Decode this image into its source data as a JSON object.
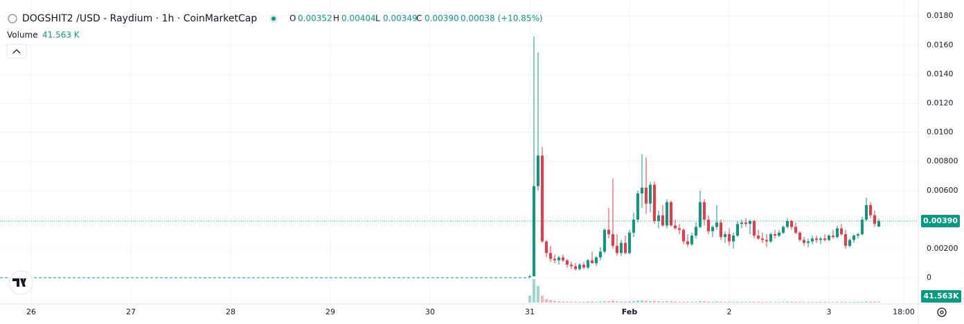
{
  "chart_data": {
    "type": "candlestick",
    "title": "DOGSHIT2 /USD - Raydium · 1h · CoinMarketCap",
    "ohlc_header": [
      {
        "key": "O",
        "text": "0.00352"
      },
      {
        "key": "H",
        "text": "0.00404"
      },
      {
        "key": "L",
        "text": "0.00349"
      },
      {
        "key": "C",
        "text": "0.00390"
      }
    ],
    "change": "0.00038 (+10.85%)",
    "volume_title": "Volume",
    "volume_text": "41.563 K",
    "volume_axis_label": "41.563K",
    "last_price_label": "0.00390",
    "up_color": "#089981",
    "down_color": "#f23645",
    "volume_up_color": "#9fd6cf",
    "volume_down_color": "#f7b3b8",
    "grid": true,
    "xlim": [
      -127.5,
      93.5
    ],
    "xticks": [
      {
        "value": -120,
        "label": "26"
      },
      {
        "value": -96,
        "label": "27"
      },
      {
        "value": -72,
        "label": "28"
      },
      {
        "value": -48,
        "label": "29"
      },
      {
        "value": -24,
        "label": "30"
      },
      {
        "value": 0,
        "label": "31"
      },
      {
        "value": 24,
        "label": "Feb"
      },
      {
        "value": 48,
        "label": "2"
      },
      {
        "value": 72,
        "label": "3"
      },
      {
        "value": 90,
        "label": "18:00"
      }
    ],
    "ylim": [
      -0.0018,
      0.0191
    ],
    "yticks": [
      0,
      {
        "value": 0.002,
        "label": "0.00200"
      },
      {
        "value": 0.006,
        "label": "0.00600"
      },
      {
        "value": 0.008,
        "label": "0.00800"
      },
      {
        "value": 0.01,
        "label": "0.0100"
      },
      {
        "value": 0.012,
        "label": "0.0120"
      },
      {
        "value": 0.014,
        "label": "0.0140"
      },
      {
        "value": 0.016,
        "label": "0.0160"
      },
      {
        "value": 0.018,
        "label": "0.0180"
      }
    ],
    "volume_ylim": [
      0,
      1200000
    ],
    "x": [
      0,
      1,
      2,
      3,
      4,
      5,
      6,
      7,
      8,
      9,
      10,
      11,
      12,
      13,
      14,
      15,
      16,
      17,
      18,
      19,
      20,
      21,
      22,
      23,
      24,
      25,
      26,
      27,
      28,
      29,
      30,
      31,
      32,
      33,
      34,
      35,
      36,
      37,
      38,
      39,
      40,
      41,
      42,
      43,
      44,
      45,
      46,
      47,
      48,
      49,
      50,
      51,
      52,
      53,
      54,
      55,
      56,
      57,
      58,
      59,
      60,
      61,
      62,
      63,
      64,
      65,
      66,
      67,
      68,
      69,
      70,
      71,
      72,
      73,
      74,
      75,
      76,
      77,
      78,
      79,
      80,
      81,
      82,
      83,
      84
    ],
    "open": [
      0.0001,
      0.0001,
      0.0063,
      0.0084,
      0.0025,
      0.0017,
      0.0013,
      0.0012,
      0.0014,
      0.0012,
      0.0009,
      0.0008,
      0.0006,
      0.0009,
      0.0007,
      0.0012,
      0.001,
      0.0014,
      0.0018,
      0.0033,
      0.003,
      0.0022,
      0.0017,
      0.0024,
      0.0017,
      0.0031,
      0.004,
      0.0058,
      0.0062,
      0.0051,
      0.0064,
      0.0039,
      0.0043,
      0.0036,
      0.0052,
      0.0036,
      0.0034,
      0.0033,
      0.0025,
      0.0023,
      0.0029,
      0.0035,
      0.0052,
      0.004,
      0.0032,
      0.0035,
      0.0038,
      0.0028,
      0.003,
      0.0025,
      0.0029,
      0.0037,
      0.0038,
      0.0037,
      0.0039,
      0.0029,
      0.0027,
      0.0026,
      0.0025,
      0.003,
      0.0029,
      0.0031,
      0.0035,
      0.0039,
      0.0035,
      0.0031,
      0.0026,
      0.0024,
      0.0025,
      0.0027,
      0.0026,
      0.0027,
      0.0026,
      0.0029,
      0.0028,
      0.0034,
      0.003,
      0.0022,
      0.0026,
      0.0029,
      0.003,
      0.004,
      0.005,
      0.0043,
      0.00352
    ],
    "high": [
      0.0002,
      0.0166,
      0.0155,
      0.009,
      0.0026,
      0.0022,
      0.0016,
      0.0015,
      0.0016,
      0.0013,
      0.0011,
      0.001,
      0.001,
      0.0011,
      0.0013,
      0.0018,
      0.0015,
      0.0021,
      0.0034,
      0.0048,
      0.0068,
      0.003,
      0.0026,
      0.0029,
      0.0033,
      0.0045,
      0.006,
      0.0085,
      0.0083,
      0.0066,
      0.0066,
      0.0046,
      0.005,
      0.0054,
      0.0053,
      0.004,
      0.0037,
      0.0034,
      0.003,
      0.0031,
      0.0038,
      0.006,
      0.0054,
      0.0043,
      0.0036,
      0.005,
      0.004,
      0.0032,
      0.0034,
      0.0031,
      0.0039,
      0.004,
      0.0041,
      0.004,
      0.004,
      0.0033,
      0.0031,
      0.003,
      0.0031,
      0.0033,
      0.0033,
      0.0036,
      0.0041,
      0.004,
      0.0038,
      0.0032,
      0.0028,
      0.0027,
      0.0029,
      0.0029,
      0.0028,
      0.003,
      0.003,
      0.0033,
      0.0036,
      0.0037,
      0.0033,
      0.0027,
      0.003,
      0.0031,
      0.0042,
      0.0055,
      0.0052,
      0.0046,
      0.00404
    ],
    "low": [
      0.0,
      0.0001,
      0.006,
      0.0024,
      0.0014,
      0.0011,
      0.001,
      0.0009,
      0.0011,
      0.0007,
      0.0006,
      0.0005,
      0.0005,
      0.0006,
      0.0006,
      0.001,
      0.0008,
      0.0012,
      0.0017,
      0.0027,
      0.002,
      0.0015,
      0.0015,
      0.0016,
      0.0016,
      0.0028,
      0.0038,
      0.0048,
      0.0044,
      0.0045,
      0.0037,
      0.0034,
      0.0035,
      0.0034,
      0.0035,
      0.0033,
      0.003,
      0.0023,
      0.0021,
      0.0022,
      0.0027,
      0.0034,
      0.0036,
      0.003,
      0.0028,
      0.0033,
      0.0026,
      0.0024,
      0.0022,
      0.002,
      0.0028,
      0.0034,
      0.0035,
      0.003,
      0.0027,
      0.0026,
      0.0024,
      0.0021,
      0.0024,
      0.0027,
      0.0028,
      0.003,
      0.0034,
      0.0033,
      0.003,
      0.0025,
      0.0022,
      0.0021,
      0.0023,
      0.0024,
      0.0023,
      0.0025,
      0.0025,
      0.0027,
      0.0027,
      0.0029,
      0.002,
      0.0021,
      0.0024,
      0.0027,
      0.0029,
      0.0039,
      0.0041,
      0.0035,
      0.00349
    ],
    "close": [
      0.0001,
      0.0063,
      0.0084,
      0.0025,
      0.0017,
      0.0013,
      0.0012,
      0.0014,
      0.0012,
      0.0009,
      0.0008,
      0.0006,
      0.0009,
      0.0007,
      0.0012,
      0.001,
      0.0014,
      0.0018,
      0.0033,
      0.003,
      0.0022,
      0.0017,
      0.0024,
      0.0017,
      0.0031,
      0.004,
      0.0058,
      0.0062,
      0.0051,
      0.0064,
      0.0039,
      0.0043,
      0.0036,
      0.0052,
      0.0036,
      0.0034,
      0.0033,
      0.0025,
      0.0023,
      0.0029,
      0.0035,
      0.0052,
      0.004,
      0.0032,
      0.0035,
      0.0038,
      0.0028,
      0.003,
      0.0025,
      0.0029,
      0.0037,
      0.0038,
      0.0037,
      0.0039,
      0.0029,
      0.0027,
      0.0026,
      0.0025,
      0.003,
      0.0029,
      0.0031,
      0.0035,
      0.0039,
      0.0035,
      0.0031,
      0.0026,
      0.0024,
      0.0025,
      0.0027,
      0.0026,
      0.0027,
      0.0026,
      0.0029,
      0.0028,
      0.0034,
      0.003,
      0.0022,
      0.0026,
      0.0029,
      0.003,
      0.004,
      0.005,
      0.0043,
      0.0037,
      0.0039
    ],
    "volume": [
      300000,
      1020000,
      720000,
      300000,
      150000,
      110000,
      80000,
      60000,
      50000,
      45000,
      40000,
      40000,
      35000,
      40000,
      45000,
      50000,
      40000,
      45000,
      60000,
      70000,
      90000,
      60000,
      50000,
      45000,
      55000,
      70000,
      90000,
      100000,
      80000,
      70000,
      80000,
      60000,
      55000,
      65000,
      60000,
      45000,
      40000,
      45000,
      40000,
      35000,
      40000,
      70000,
      60000,
      45000,
      40000,
      50000,
      45000,
      35000,
      40000,
      35000,
      40000,
      35000,
      35000,
      40000,
      45000,
      35000,
      30000,
      35000,
      30000,
      35000,
      30000,
      35000,
      45000,
      40000,
      35000,
      35000,
      30000,
      30000,
      30000,
      30000,
      30000,
      30000,
      30000,
      30000,
      35000,
      35000,
      40000,
      30000,
      30000,
      30000,
      35000,
      50000,
      45000,
      40000,
      41563
    ]
  }
}
